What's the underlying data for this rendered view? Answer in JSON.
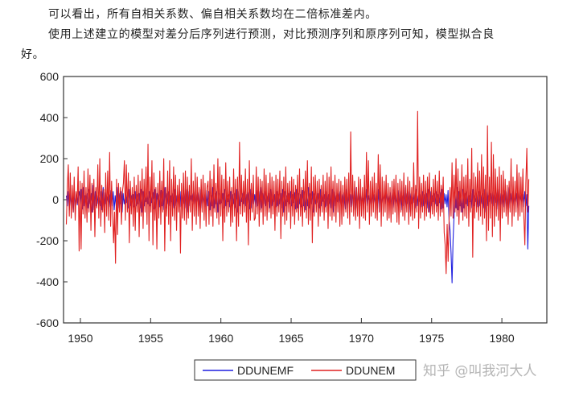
{
  "text": {
    "line1": "可以看出，所有自相关系数、偏自相关系数均在二倍标准差内。",
    "line2": "使用上述建立的模型对差分后序列进行预测，对比预测序列和原序列可知，模型拟合良",
    "line3": "好。"
  },
  "watermark": "知乎 @叫我河大人",
  "chart_data": {
    "type": "line",
    "title": "",
    "xlabel": "",
    "ylabel": "",
    "xlim": [
      1948.8,
      1983.2
    ],
    "ylim": [
      -600,
      600
    ],
    "yticks": [
      -600,
      -400,
      -200,
      0,
      200,
      400,
      600
    ],
    "xticks": [
      1950,
      1955,
      1960,
      1965,
      1970,
      1975,
      1980
    ],
    "x_start": 1949.0,
    "x_end": 1981.917,
    "grid": false,
    "legend": "bottom-center",
    "colors": {
      "DDUNEMF": "#1f1fe0",
      "DDUNEM": "#e02020"
    },
    "series": [
      {
        "name": "DDUNEMF",
        "color": "#1f1fe0",
        "values": [
          20,
          -30,
          40,
          -50,
          35,
          -20,
          10,
          -60,
          45,
          -40,
          30,
          -25,
          15,
          40,
          -35,
          50,
          -45,
          60,
          -30,
          20,
          -10,
          30,
          -40,
          50,
          -20,
          30,
          -60,
          70,
          -50,
          40,
          -30,
          20,
          -20,
          10,
          -30,
          40,
          -50,
          60,
          -40,
          35,
          -20,
          15,
          -10,
          25,
          -35,
          45,
          -30,
          40,
          -50,
          20,
          -30,
          60,
          -40,
          30,
          -20,
          40,
          -60,
          30,
          -20,
          10,
          -15,
          30,
          -40,
          50,
          -30,
          20,
          -10,
          25,
          -35,
          40,
          -30,
          25,
          -20,
          30,
          -40,
          50,
          -60,
          40,
          -30,
          20,
          -10,
          30,
          -20,
          40,
          -30,
          25,
          -15,
          35,
          -45,
          50,
          -40,
          30,
          -20,
          25,
          -35,
          45,
          -30,
          40,
          -50,
          60,
          -40,
          30,
          -20,
          40,
          -30,
          20,
          -10,
          30,
          -40,
          50,
          -30,
          20,
          -10,
          25,
          -35,
          40,
          -30,
          25,
          -20,
          30,
          -40,
          50,
          -60,
          40,
          -30,
          20,
          -10,
          30,
          -20,
          40,
          -30,
          25,
          -15,
          35,
          -45,
          50,
          -40,
          30,
          -20,
          25,
          -35,
          45,
          -30,
          40,
          -50,
          20,
          -30,
          60,
          -40,
          30,
          -20,
          40,
          -60,
          30,
          -20,
          10,
          -15,
          30,
          -40,
          50,
          -30,
          20,
          -10,
          25,
          -35,
          40,
          -30,
          25,
          -20,
          30,
          -40,
          50,
          -60,
          40,
          -30,
          20,
          -10,
          30,
          -20,
          40,
          -30,
          25,
          -15,
          35,
          -45,
          50,
          -40,
          30,
          -20,
          25,
          -35,
          45,
          -30,
          40,
          -50,
          60,
          -40,
          30,
          -20,
          40,
          -30,
          20,
          -10,
          30,
          -40,
          50,
          -30,
          20,
          -10,
          25,
          -35,
          40,
          -30,
          25,
          -20,
          30,
          -40,
          50,
          -60,
          40,
          -30,
          20,
          -10,
          30,
          -20,
          40,
          -30,
          25,
          -15,
          35,
          -45,
          50,
          -40,
          30,
          -20,
          25,
          -35,
          45,
          -30,
          40,
          -50,
          20,
          -30,
          60,
          -40,
          30,
          -20,
          40,
          -60,
          30,
          -20,
          10,
          -15,
          30,
          -40,
          50,
          -30,
          20,
          -10,
          25,
          -35,
          40,
          -30,
          25,
          -20,
          30,
          -40,
          50,
          -60,
          40,
          -30,
          20,
          -10,
          30,
          -20,
          40,
          -30,
          25,
          -15,
          35,
          -45,
          50,
          -40,
          30,
          -20,
          25,
          -35,
          45,
          -30,
          40,
          -50,
          60,
          -40,
          30,
          -20,
          40,
          -30,
          20,
          -10,
          30,
          -40,
          50,
          -30,
          20,
          -10,
          25,
          -35,
          40,
          -30,
          25,
          -20,
          30,
          -40,
          50,
          -60,
          40,
          -30,
          20,
          -10,
          30,
          -20,
          40,
          -30,
          25,
          -15,
          35,
          -45,
          50,
          -40,
          30,
          -20,
          25,
          -35,
          45,
          -30,
          40,
          -50,
          20,
          -30,
          60,
          -40,
          30,
          -20,
          40,
          -60,
          30,
          -20,
          10,
          -15,
          30,
          -40,
          50,
          -30,
          20,
          -10,
          25,
          -35,
          40,
          -30,
          25,
          -20,
          30,
          -40,
          50,
          -60,
          40,
          -30,
          20,
          -10,
          30,
          -20,
          40,
          -30,
          25,
          -15,
          35,
          -45,
          50,
          -40,
          30,
          -20,
          25,
          -35,
          45,
          -100,
          -150,
          -260,
          -405,
          -200,
          -80,
          30,
          -40,
          60,
          -50,
          40,
          -30,
          20,
          -60,
          50,
          -40,
          30,
          -20,
          40,
          -30,
          20,
          -10,
          30,
          -40,
          50,
          -30,
          20,
          -10,
          25,
          -35,
          40,
          -30,
          25,
          -20,
          30,
          -40,
          50,
          -60,
          40,
          -30,
          20,
          -10,
          30,
          -20,
          40,
          -30,
          25,
          -15,
          35,
          -45,
          50,
          -40,
          30,
          -20,
          25,
          -35,
          45,
          -30,
          40,
          -50,
          60,
          -40,
          30,
          -20,
          40,
          -30,
          20,
          -10,
          30,
          -40,
          50,
          -30,
          20,
          -10,
          25,
          -35,
          40,
          -30,
          25,
          -240,
          -30
        ]
      },
      {
        "name": "DDUNEM",
        "color": "#e02020",
        "values": [
          -120,
          60,
          170,
          -80,
          130,
          -90,
          70,
          -60,
          110,
          -100,
          40,
          -20,
          160,
          -250,
          90,
          -240,
          80,
          -70,
          140,
          -90,
          60,
          -110,
          150,
          -60,
          120,
          -150,
          80,
          -60,
          100,
          -180,
          60,
          -40,
          170,
          -90,
          200,
          -130,
          70,
          -60,
          50,
          -160,
          130,
          -80,
          140,
          -100,
          230,
          -130,
          90,
          -60,
          -210,
          -60,
          -310,
          100,
          -170,
          80,
          -60,
          60,
          -120,
          40,
          80,
          190,
          -100,
          170,
          -60,
          130,
          -210,
          90,
          -70,
          60,
          -130,
          110,
          -150,
          70,
          -60,
          120,
          -180,
          90,
          -80,
          150,
          -140,
          100,
          -60,
          160,
          -120,
          270,
          -200,
          110,
          -60,
          190,
          -220,
          130,
          -100,
          60,
          -240,
          80,
          -90,
          140,
          -120,
          90,
          -60,
          200,
          -250,
          60,
          -80,
          140,
          -120,
          190,
          -200,
          100,
          -80,
          160,
          -100,
          120,
          -150,
          70,
          -60,
          100,
          -260,
          80,
          -90,
          130,
          -100,
          140,
          -120,
          110,
          -90,
          70,
          -60,
          200,
          -150,
          90,
          -80,
          130,
          -120,
          110,
          -80,
          60,
          -140,
          100,
          -60,
          120,
          -100,
          80,
          -130,
          60,
          90,
          -120,
          140,
          -80,
          100,
          -130,
          170,
          -60,
          80,
          -90,
          200,
          -120,
          160,
          -80,
          120,
          -200,
          100,
          -110,
          180,
          -80,
          90,
          -60,
          110,
          -130,
          60,
          -110,
          150,
          -80,
          100,
          -200,
          110,
          -130,
          280,
          -70,
          120,
          -80,
          90,
          -60,
          150,
          -110,
          100,
          -220,
          190,
          -100,
          80,
          -60,
          120,
          -100,
          -90,
          160,
          -70,
          110,
          -130,
          100,
          -60,
          90,
          -120,
          150,
          -80,
          120,
          -100,
          80,
          -60,
          130,
          -90,
          110,
          -70,
          90,
          -150,
          120,
          -80,
          100,
          -60,
          140,
          -190,
          90,
          -80,
          110,
          -120,
          160,
          -100,
          80,
          -60,
          90,
          -140,
          110,
          -80,
          100,
          -120,
          70,
          -60,
          120,
          -100,
          150,
          -80,
          60,
          -130,
          100,
          -60,
          140,
          -90,
          190,
          -120,
          80,
          -100,
          160,
          -210,
          110,
          -80,
          120,
          -60,
          90,
          -130,
          100,
          -80,
          70,
          -60,
          120,
          -100,
          90,
          -60,
          130,
          -140,
          110,
          -80,
          160,
          -100,
          90,
          -80,
          120,
          -110,
          80,
          -60,
          100,
          -130,
          90,
          -120,
          70,
          -80,
          110,
          -60,
          100,
          -90,
          130,
          -120,
          330,
          -60,
          120,
          -80,
          90,
          -100,
          60,
          -80,
          110,
          -140,
          100,
          -80,
          60,
          -90,
          120,
          -100,
          230,
          -60,
          190,
          -120,
          90,
          -80,
          110,
          -60,
          130,
          -90,
          80,
          -100,
          220,
          -60,
          170,
          -130,
          110,
          -80,
          90,
          -60,
          120,
          -100,
          80,
          -90,
          60,
          -110,
          90,
          -70,
          100,
          -60,
          120,
          -110,
          80,
          -120,
          100,
          -60,
          90,
          -80,
          130,
          -100,
          70,
          -60,
          110,
          -120,
          90,
          -80,
          60,
          -100,
          180,
          -90,
          70,
          -60,
          430,
          -140,
          110,
          -90,
          80,
          -60,
          120,
          -100,
          90,
          -80,
          110,
          -60,
          130,
          -90,
          60,
          -70,
          100,
          -80,
          120,
          -60,
          90,
          -100,
          140,
          -80,
          70,
          -60,
          110,
          -160,
          -220,
          -360,
          -120,
          -300,
          -100,
          60,
          -80,
          180,
          -90,
          120,
          -60,
          200,
          -80,
          150,
          -120,
          90,
          -60,
          170,
          -100,
          110,
          -80,
          120,
          -90,
          200,
          -130,
          100,
          -60,
          250,
          -280,
          130,
          -90,
          110,
          -60,
          180,
          -100,
          140,
          -80,
          220,
          -120,
          160,
          -90,
          120,
          -200,
          360,
          -150,
          110,
          -90,
          280,
          -180,
          220,
          -130,
          150,
          -80,
          110,
          -100,
          160,
          -200,
          120,
          -90,
          140,
          -60,
          100,
          -80,
          70,
          -120,
          90,
          -60,
          200,
          -130,
          110,
          -80,
          90,
          -60,
          170,
          -100,
          130,
          -80,
          110,
          -60,
          150,
          -90,
          -220,
          80,
          250,
          -60,
          100
        ]
      }
    ]
  }
}
